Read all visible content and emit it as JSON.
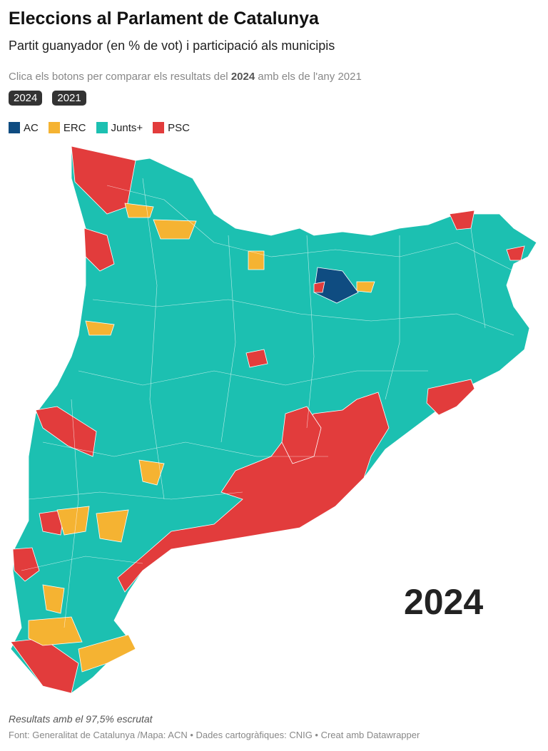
{
  "header": {
    "title": "Eleccions al Parlament de Catalunya",
    "subtitle": "Partit guanyador (en % de vot) i participació als municipis",
    "instruction": {
      "before": "Clica els botons per comparar els resultats del ",
      "bold": "2024",
      "after": " amb els de l'any 2021"
    }
  },
  "buttons": [
    "2024",
    "2021"
  ],
  "legend": [
    {
      "name": "AC",
      "color": "#0f4c81"
    },
    {
      "name": "ERC",
      "color": "#f5b332"
    },
    {
      "name": "Junts+",
      "color": "#1cc0b1"
    },
    {
      "name": "PSC",
      "color": "#e23c3c"
    }
  ],
  "map": {
    "year_label": "2024"
  },
  "footer": {
    "note": "Resultats amb el 97,5% escrutat",
    "source": "Font: Generalitat de Catalunya /Mapa: ACN • Dades cartogràfiques: CNIG  • Creat amb Datawrapper"
  }
}
